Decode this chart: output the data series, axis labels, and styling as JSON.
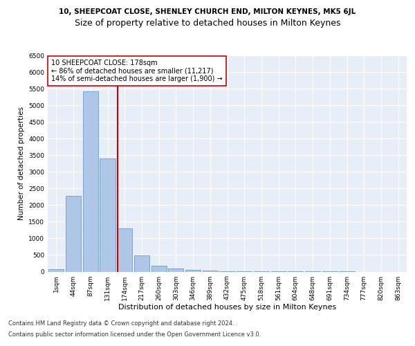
{
  "title1": "10, SHEEPCOAT CLOSE, SHENLEY CHURCH END, MILTON KEYNES, MK5 6JL",
  "title2": "Size of property relative to detached houses in Milton Keynes",
  "xlabel": "Distribution of detached houses by size in Milton Keynes",
  "ylabel": "Number of detached properties",
  "bar_labels": [
    "1sqm",
    "44sqm",
    "87sqm",
    "131sqm",
    "174sqm",
    "217sqm",
    "260sqm",
    "303sqm",
    "346sqm",
    "389sqm",
    "432sqm",
    "475sqm",
    "518sqm",
    "561sqm",
    "604sqm",
    "648sqm",
    "691sqm",
    "734sqm",
    "777sqm",
    "820sqm",
    "863sqm"
  ],
  "bar_values": [
    80,
    2270,
    5420,
    3400,
    1290,
    490,
    170,
    95,
    60,
    35,
    15,
    8,
    5,
    3,
    2,
    1,
    1,
    1,
    0,
    0,
    0
  ],
  "bar_color": "#aec6e8",
  "bar_edgecolor": "#5a8fc0",
  "annotation_line1": "10 SHEEPCOAT CLOSE: 178sqm",
  "annotation_line2": "← 86% of detached houses are smaller (11,217)",
  "annotation_line3": "14% of semi-detached houses are larger (1,900) →",
  "vline_color": "#cc0000",
  "background_color": "#e8eef8",
  "ylim": [
    0,
    6500
  ],
  "yticks": [
    0,
    500,
    1000,
    1500,
    2000,
    2500,
    3000,
    3500,
    4000,
    4500,
    5000,
    5500,
    6000,
    6500
  ],
  "footnote1": "Contains HM Land Registry data © Crown copyright and database right 2024.",
  "footnote2": "Contains public sector information licensed under the Open Government Licence v3.0.",
  "title1_fontsize": 7.5,
  "title2_fontsize": 9,
  "xlabel_fontsize": 8,
  "ylabel_fontsize": 7.5,
  "tick_fontsize": 6.5,
  "annotation_fontsize": 7,
  "footnote_fontsize": 6,
  "vline_pos": 3.59
}
